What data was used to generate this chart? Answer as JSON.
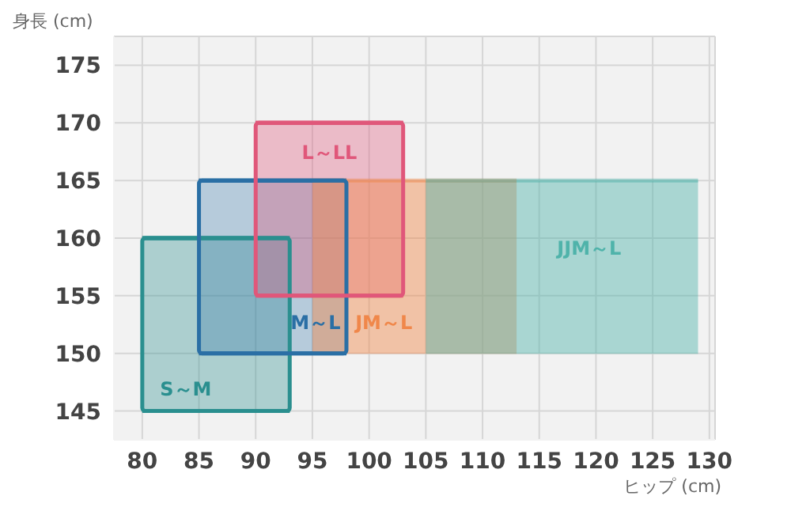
{
  "chart_data": {
    "type": "line",
    "xlabel": "ヒップ (cm)",
    "ylabel": "身長 (cm)",
    "xlim": [
      77.5,
      130.5
    ],
    "xticks": [
      80,
      85,
      90,
      95,
      100,
      105,
      110,
      115,
      120,
      125,
      130
    ],
    "ylim": [
      142.5,
      177.5
    ],
    "yticks": [
      145,
      150,
      155,
      160,
      165,
      170,
      175
    ],
    "grid": true,
    "series": [
      {
        "name": "S～M",
        "color": "#2a8f8f",
        "x": [
          80,
          93
        ],
        "values": [
          160,
          160
        ],
        "lower": [
          145,
          145
        ],
        "upper": [
          160,
          160
        ]
      },
      {
        "name": "M～L",
        "color": "#2a6fa5",
        "x": [
          85,
          98
        ],
        "values": [
          165,
          165
        ],
        "lower": [
          150,
          150
        ],
        "upper": [
          165,
          165
        ]
      },
      {
        "name": "L～LL",
        "color": "#e0577a",
        "x": [
          90,
          103
        ],
        "values": [
          170,
          170
        ],
        "lower": [
          155,
          155
        ],
        "upper": [
          170,
          170
        ]
      },
      {
        "name": "JM～L",
        "color": "#f0874a",
        "x": [
          95,
          113
        ],
        "values": [
          165,
          165
        ],
        "lower": [
          150,
          150
        ],
        "upper": [
          165,
          165
        ]
      },
      {
        "name": "JJM～L",
        "color": "#4fb3aa",
        "x": [
          105,
          129
        ],
        "values": [
          165,
          165
        ],
        "lower": [
          150,
          150
        ],
        "upper": [
          165,
          165
        ]
      }
    ]
  }
}
